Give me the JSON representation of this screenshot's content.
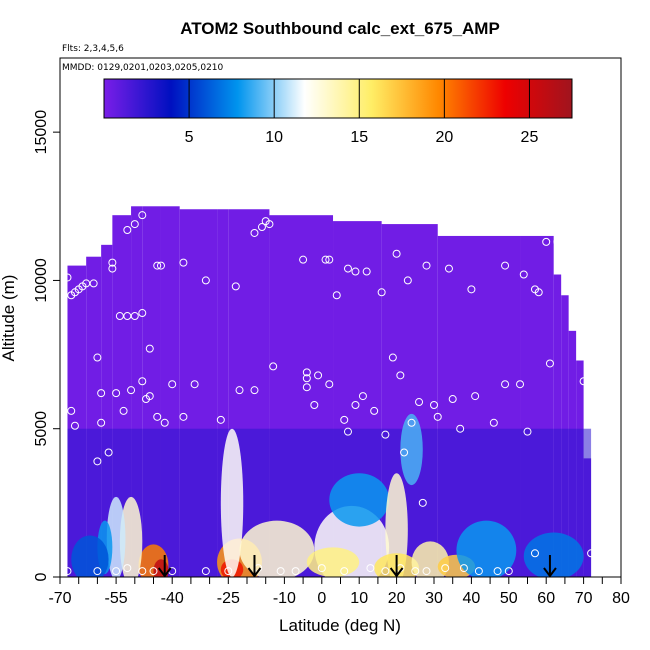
{
  "chart_data": {
    "type": "heatmap",
    "title": "ATOM2 Southbound calc_ext_675_AMP",
    "subtitle_flights": "Flts: 2,3,4,5,6",
    "subtitle_dates": "MMDD: 0129,0201,0203,0205,0210",
    "xlabel": "Latitude (deg N)",
    "ylabel": "Altitude (m)",
    "xlim": [
      -70,
      80
    ],
    "ylim": [
      0,
      17500
    ],
    "x_ticks": [
      -70,
      -55,
      -40,
      -25,
      -10,
      0,
      10,
      20,
      30,
      40,
      50,
      60,
      70,
      80
    ],
    "x_tick_labels": [
      "-70",
      "-55",
      "-40",
      "-25",
      "-10",
      "0",
      "10",
      "20",
      "30",
      "40",
      "50",
      "60",
      "70",
      "80"
    ],
    "x_minor_ticks": [
      -65,
      -60,
      -50,
      -45,
      -35,
      -30,
      -20,
      -15,
      -5,
      5,
      15,
      25,
      35,
      45,
      55,
      65,
      75
    ],
    "y_ticks": [
      0,
      5000,
      10000,
      15000
    ],
    "y_tick_labels": [
      "0",
      "5000",
      "10000",
      "15000"
    ],
    "colorbar": {
      "range": [
        0,
        27.5
      ],
      "ticks": [
        5,
        10,
        15,
        20,
        25
      ],
      "tick_labels": [
        "5",
        "10",
        "15",
        "20",
        "25"
      ],
      "colors": [
        "#7a1ee8",
        "#0010c0",
        "#0094ee",
        "#ffffff",
        "#ffee66",
        "#ff8800",
        "#ee0000",
        "#a0141e"
      ]
    },
    "profile_columns": [
      {
        "x0": -68,
        "x1": -63,
        "top": 10500
      },
      {
        "x0": -63,
        "x1": -59,
        "top": 10800
      },
      {
        "x0": -59,
        "x1": -56,
        "top": 11200
      },
      {
        "x0": -56,
        "x1": -51,
        "top": 12200
      },
      {
        "x0": -51,
        "x1": -48,
        "top": 12500
      },
      {
        "x0": -48,
        "x1": -43,
        "top": 12500
      },
      {
        "x0": -43,
        "x1": -38,
        "top": 12500
      },
      {
        "x0": -38,
        "x1": -28,
        "top": 12400
      },
      {
        "x0": -28,
        "x1": -25,
        "top": 12400
      },
      {
        "x0": -25,
        "x1": -14,
        "top": 12400
      },
      {
        "x0": -14,
        "x1": 3,
        "top": 12200
      },
      {
        "x0": 3,
        "x1": 16,
        "top": 12000
      },
      {
        "x0": 16,
        "x1": 31,
        "top": 11900
      },
      {
        "x0": 31,
        "x1": 53,
        "top": 11500
      },
      {
        "x0": 53,
        "x1": 62,
        "top": 11500
      },
      {
        "x0": 62,
        "x1": 64,
        "top": 10200
      },
      {
        "x0": 64,
        "x1": 66,
        "top": 9500
      },
      {
        "x0": 66,
        "x1": 68,
        "top": 8300
      },
      {
        "x0": 68,
        "x1": 70,
        "top": 7300
      },
      {
        "x0": 70,
        "x1": 72,
        "top": 4000
      }
    ],
    "blobs": [
      {
        "x": -45,
        "y": 400,
        "rx": 4,
        "ry": 700,
        "v": 20
      },
      {
        "x": -43,
        "y": 200,
        "rx": 2,
        "ry": 400,
        "v": 26
      },
      {
        "x": -51,
        "y": 1200,
        "rx": 3,
        "ry": 1500,
        "v": 13
      },
      {
        "x": -55,
        "y": 1300,
        "rx": 2.5,
        "ry": 1400,
        "v": 11
      },
      {
        "x": -58,
        "y": 1000,
        "rx": 2,
        "ry": 900,
        "v": 8
      },
      {
        "x": -22,
        "y": 500,
        "rx": 6,
        "ry": 800,
        "v": 19
      },
      {
        "x": -24,
        "y": 250,
        "rx": 3,
        "ry": 350,
        "v": 23
      },
      {
        "x": -24,
        "y": 2500,
        "rx": 3,
        "ry": 2500,
        "v": 12
      },
      {
        "x": -12,
        "y": 900,
        "rx": 10,
        "ry": 1000,
        "v": 13
      },
      {
        "x": 8,
        "y": 1000,
        "rx": 10,
        "ry": 1400,
        "v": 12
      },
      {
        "x": 3,
        "y": 500,
        "rx": 7,
        "ry": 500,
        "v": 15
      },
      {
        "x": 10,
        "y": 2600,
        "rx": 8,
        "ry": 900,
        "v": 8
      },
      {
        "x": 20,
        "y": 1600,
        "rx": 3,
        "ry": 1900,
        "v": 13
      },
      {
        "x": 20,
        "y": 300,
        "rx": 6,
        "ry": 500,
        "v": 16
      },
      {
        "x": 24,
        "y": 4300,
        "rx": 3,
        "ry": 1200,
        "v": 9
      },
      {
        "x": 29,
        "y": 500,
        "rx": 5,
        "ry": 700,
        "v": 14
      },
      {
        "x": 36,
        "y": 350,
        "rx": 5,
        "ry": 400,
        "v": 17
      },
      {
        "x": 44,
        "y": 900,
        "rx": 8,
        "ry": 1000,
        "v": 8
      },
      {
        "x": 62,
        "y": 700,
        "rx": 8,
        "ry": 800,
        "v": 7
      },
      {
        "x": -62,
        "y": 600,
        "rx": 5,
        "ry": 800,
        "v": 6
      }
    ],
    "sample_points": [
      [
        -68,
        10100
      ],
      [
        -67,
        9500
      ],
      [
        -66,
        9600
      ],
      [
        -65,
        9700
      ],
      [
        -64,
        9800
      ],
      [
        -63,
        9900
      ],
      [
        -61,
        9900
      ],
      [
        -56,
        10600
      ],
      [
        -56,
        10400
      ],
      [
        -52,
        11700
      ],
      [
        -50,
        11900
      ],
      [
        -48,
        12200
      ],
      [
        -44,
        10500
      ],
      [
        -43,
        10500
      ],
      [
        -37,
        10600
      ],
      [
        -31,
        10000
      ],
      [
        -23,
        9800
      ],
      [
        -18,
        11600
      ],
      [
        -16,
        11800
      ],
      [
        -15,
        12000
      ],
      [
        -14,
        11900
      ],
      [
        -5,
        10700
      ],
      [
        1,
        10700
      ],
      [
        2,
        10700
      ],
      [
        7,
        10400
      ],
      [
        9,
        10300
      ],
      [
        12,
        10300
      ],
      [
        16,
        9600
      ],
      [
        20,
        10900
      ],
      [
        23,
        10000
      ],
      [
        28,
        10500
      ],
      [
        34,
        10400
      ],
      [
        40,
        9700
      ],
      [
        49,
        10500
      ],
      [
        54,
        10200
      ],
      [
        57,
        9700
      ],
      [
        58,
        9600
      ],
      [
        60,
        11300
      ],
      [
        63,
        11300
      ],
      [
        -60,
        7400
      ],
      [
        -54,
        8800
      ],
      [
        -52,
        8800
      ],
      [
        -50,
        8800
      ],
      [
        -48,
        8900
      ],
      [
        -46,
        7700
      ],
      [
        -48,
        6600
      ],
      [
        -46,
        6100
      ],
      [
        -44,
        5400
      ],
      [
        -40,
        6500
      ],
      [
        -37,
        5400
      ],
      [
        -34,
        6500
      ],
      [
        -27,
        5300
      ],
      [
        -22,
        6300
      ],
      [
        -18,
        6300
      ],
      [
        -13,
        7100
      ],
      [
        -4,
        6400
      ],
      [
        -4,
        6900
      ],
      [
        -4,
        6700
      ],
      [
        -2,
        5800
      ],
      [
        2,
        6500
      ],
      [
        4,
        9500
      ],
      [
        -1,
        6800
      ],
      [
        -67,
        5600
      ],
      [
        -66,
        5100
      ],
      [
        -59,
        6200
      ],
      [
        -55,
        6200
      ],
      [
        -59,
        5200
      ],
      [
        -53,
        5600
      ],
      [
        -51,
        6300
      ],
      [
        -47,
        6000
      ],
      [
        -57,
        4200
      ],
      [
        -60,
        3900
      ],
      [
        -42,
        5200
      ],
      [
        6,
        5300
      ],
      [
        9,
        5800
      ],
      [
        11,
        6100
      ],
      [
        14,
        5600
      ],
      [
        17,
        4800
      ],
      [
        19,
        7400
      ],
      [
        21,
        6800
      ],
      [
        22,
        4200
      ],
      [
        24,
        5200
      ],
      [
        26,
        5900
      ],
      [
        30,
        5800
      ],
      [
        31,
        5400
      ],
      [
        35,
        6000
      ],
      [
        37,
        5000
      ],
      [
        41,
        6100
      ],
      [
        46,
        5200
      ],
      [
        49,
        6500
      ],
      [
        53,
        6500
      ],
      [
        55,
        4900
      ],
      [
        61,
        7200
      ],
      [
        70,
        6600
      ],
      [
        7,
        4900
      ],
      [
        27,
        2500
      ],
      [
        -68,
        200
      ],
      [
        -60,
        200
      ],
      [
        -55,
        200
      ],
      [
        -52,
        300
      ],
      [
        -48,
        200
      ],
      [
        -45,
        200
      ],
      [
        -40,
        200
      ],
      [
        -31,
        200
      ],
      [
        -25,
        200
      ],
      [
        -17,
        300
      ],
      [
        -11,
        200
      ],
      [
        -7,
        200
      ],
      [
        0,
        300
      ],
      [
        6,
        200
      ],
      [
        13,
        300
      ],
      [
        17,
        200
      ],
      [
        21,
        300
      ],
      [
        25,
        200
      ],
      [
        28,
        200
      ],
      [
        33,
        300
      ],
      [
        38,
        300
      ],
      [
        42,
        200
      ],
      [
        47,
        200
      ],
      [
        50,
        200
      ],
      [
        57,
        800
      ],
      [
        72,
        800
      ]
    ],
    "arrows_x": [
      -42,
      -18,
      20,
      61
    ]
  }
}
